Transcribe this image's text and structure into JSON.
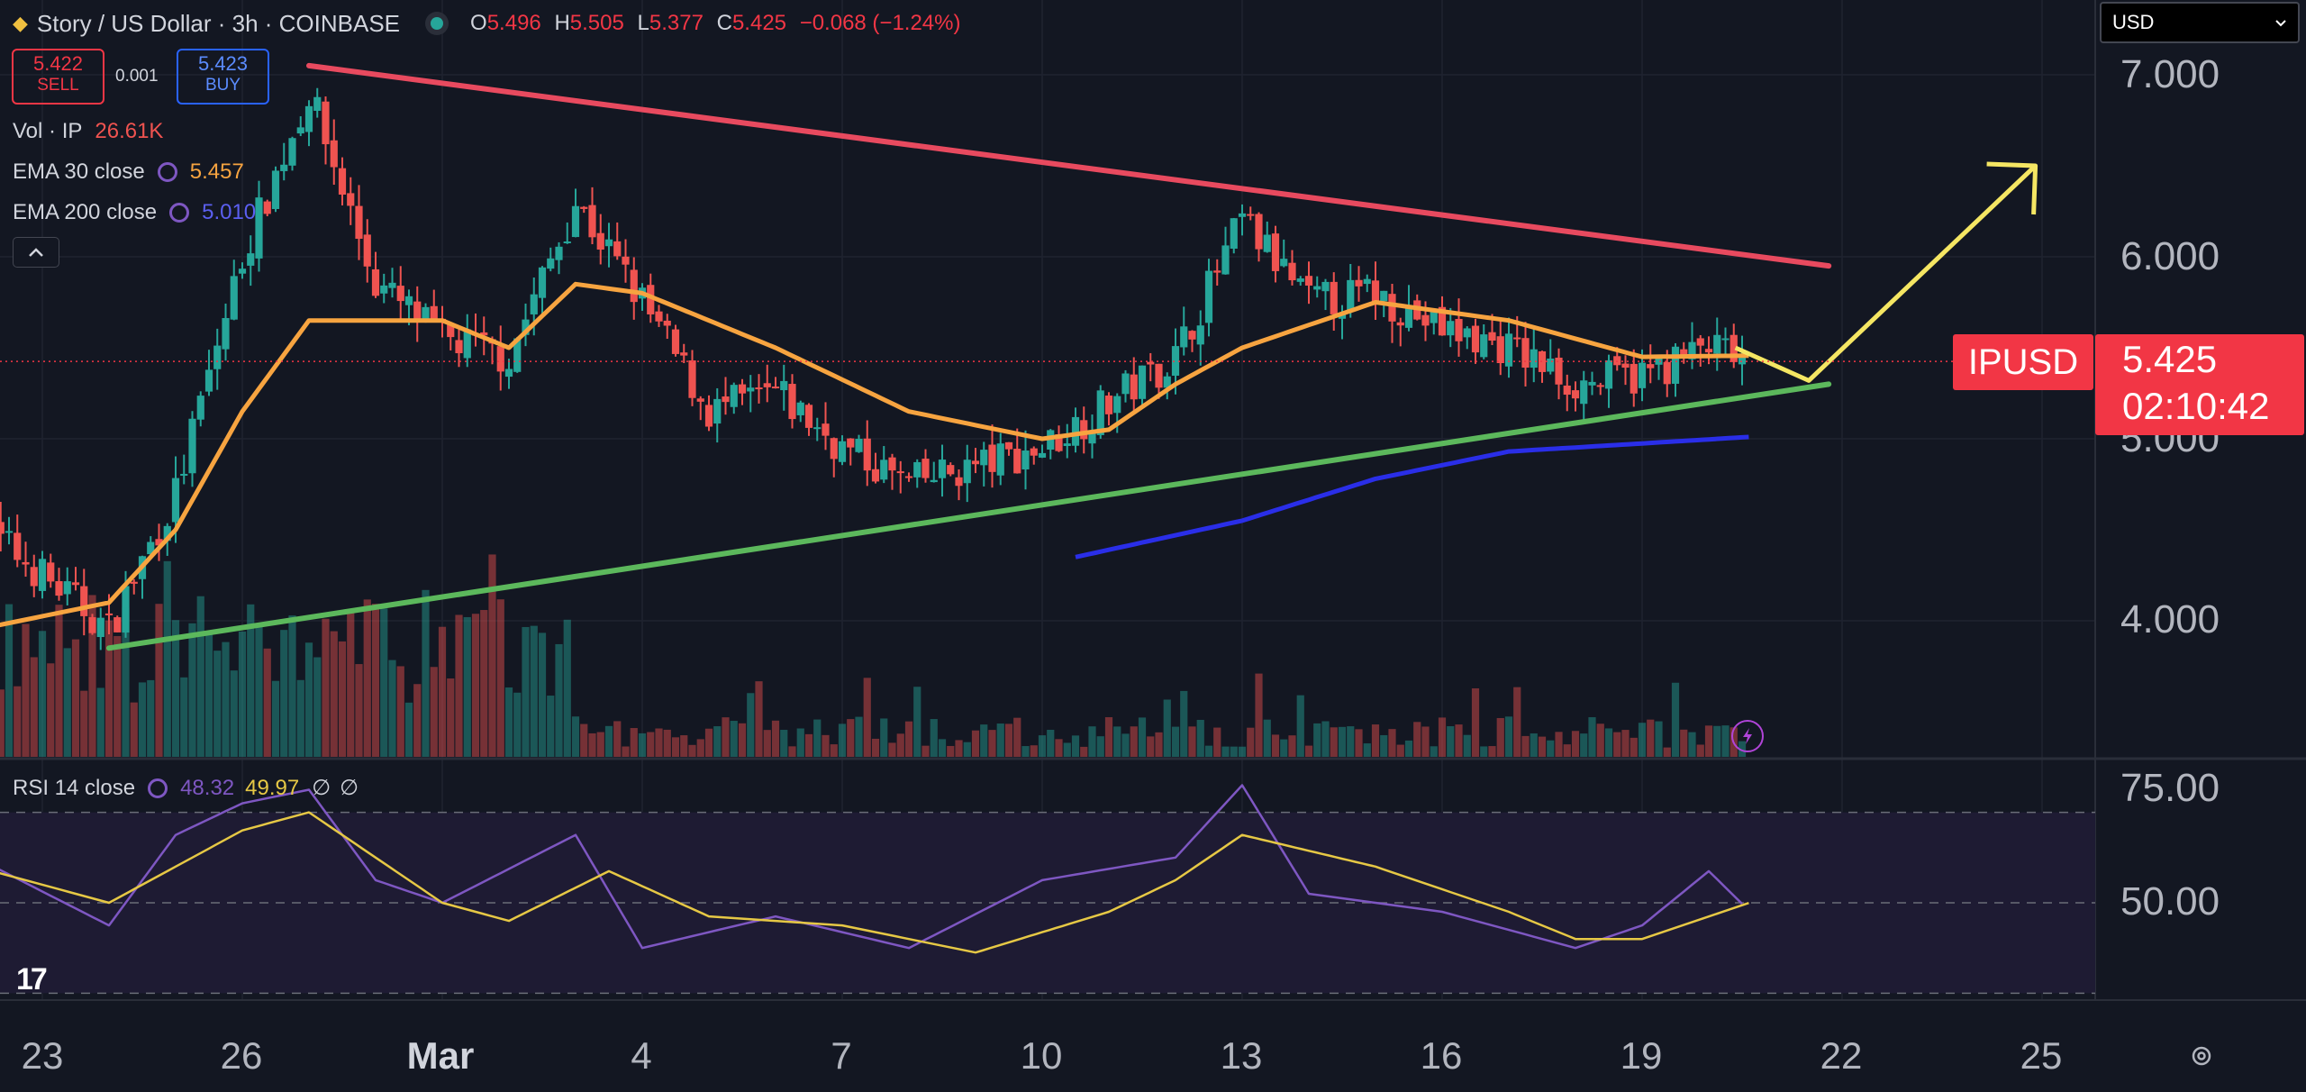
{
  "header": {
    "symbol_title": "Story / US Dollar · 3h · COINBASE",
    "open_prefix": "O",
    "open_value": "5.496",
    "high_prefix": "H",
    "high_value": "5.505",
    "low_prefix": "L",
    "low_value": "5.377",
    "close_prefix": "C",
    "close_value": "5.425",
    "change": "−0.068 (−1.24%)"
  },
  "trade": {
    "sell_price": "5.422",
    "sell_label": "SELL",
    "spread": "0.001",
    "buy_price": "5.423",
    "buy_label": "BUY"
  },
  "indicators": {
    "vol_label": "Vol · IP",
    "vol_value": "26.61K",
    "ema30_label": "EMA 30 close",
    "ema30_value": "5.457",
    "ema200_label": "EMA 200 close",
    "ema200_value": "5.010",
    "collapse_icon": "chevron-up-icon"
  },
  "currency_select": {
    "value": "USD"
  },
  "price_axis": {
    "labels": [
      "7.000",
      "6.000",
      "5.000",
      "4.000"
    ]
  },
  "rsi": {
    "label": "RSI 14 close",
    "value": "48.32",
    "ma_value": "49.97",
    "na1": "∅",
    "na2": "∅",
    "axis_labels": [
      "75.00",
      "50.00"
    ]
  },
  "current_price": {
    "symbol": "IPUSD",
    "price": "5.425",
    "countdown": "02:10:42"
  },
  "date_axis": {
    "labels": [
      "23",
      "26",
      "Mar",
      "4",
      "7",
      "10",
      "13",
      "16",
      "19",
      "22",
      "25"
    ]
  },
  "logo_text": "17",
  "colors": {
    "background": "#131722",
    "up": "#26a69a",
    "down": "#ef5350",
    "ema30": "#f7a440",
    "ema200": "#2a2ee8",
    "resistance": "#e84a5f",
    "support": "#5cb85c",
    "projection": "#f5e663",
    "rsi_line": "#7e57c2",
    "rsi_ma": "#e6c845",
    "price_tag": "#f23645"
  },
  "chart_data": {
    "type": "candlestick",
    "title": "Story / US Dollar · 3h · COINBASE",
    "x_axis": {
      "type": "date",
      "labels": [
        "23",
        "26",
        "Mar",
        "4",
        "7",
        "10",
        "13",
        "16",
        "19",
        "22",
        "25"
      ]
    },
    "y_axis": {
      "ticks": [
        7.0,
        6.0,
        5.0,
        4.0
      ],
      "range": [
        3.2,
        7.45
      ]
    },
    "last": {
      "open": 5.496,
      "high": 5.505,
      "low": 5.377,
      "close": 5.425
    },
    "price_keypoints": [
      {
        "date": "Feb 22",
        "close": 4.55
      },
      {
        "date": "Feb 23",
        "close": 4.25
      },
      {
        "date": "Feb 24",
        "close": 3.95
      },
      {
        "date": "Feb 25",
        "close": 4.7
      },
      {
        "date": "Feb 26",
        "close": 6.0
      },
      {
        "date": "Feb 27",
        "close": 6.9
      },
      {
        "date": "Feb 28",
        "close": 5.85
      },
      {
        "date": "Mar 1",
        "close": 5.55
      },
      {
        "date": "Mar 2",
        "close": 5.45
      },
      {
        "date": "Mar 3",
        "close": 6.3
      },
      {
        "date": "Mar 4",
        "close": 5.75
      },
      {
        "date": "Mar 5",
        "close": 5.15
      },
      {
        "date": "Mar 6",
        "close": 5.25
      },
      {
        "date": "Mar 7",
        "close": 4.95
      },
      {
        "date": "Mar 8",
        "close": 4.75
      },
      {
        "date": "Mar 9",
        "close": 4.85
      },
      {
        "date": "Mar 10",
        "close": 4.95
      },
      {
        "date": "Mar 11",
        "close": 5.2
      },
      {
        "date": "Mar 12",
        "close": 5.45
      },
      {
        "date": "Mar 13",
        "close": 6.2
      },
      {
        "date": "Mar 14",
        "close": 5.75
      },
      {
        "date": "Mar 15",
        "close": 5.8
      },
      {
        "date": "Mar 16",
        "close": 5.6
      },
      {
        "date": "Mar 17",
        "close": 5.5
      },
      {
        "date": "Mar 18",
        "close": 5.3
      },
      {
        "date": "Mar 19",
        "close": 5.35
      },
      {
        "date": "Mar 20",
        "close": 5.5
      },
      {
        "date": "Mar 20.6",
        "close": 5.425
      }
    ],
    "ema30_keypoints": [
      {
        "date": "Feb 22",
        "value": 3.95
      },
      {
        "date": "Feb 24",
        "value": 4.1
      },
      {
        "date": "Feb 25",
        "value": 4.5
      },
      {
        "date": "Feb 26",
        "value": 5.15
      },
      {
        "date": "Feb 27",
        "value": 5.65
      },
      {
        "date": "Mar 1",
        "value": 5.65
      },
      {
        "date": "Mar 2",
        "value": 5.5
      },
      {
        "date": "Mar 3",
        "value": 5.85
      },
      {
        "date": "Mar 4",
        "value": 5.8
      },
      {
        "date": "Mar 6",
        "value": 5.5
      },
      {
        "date": "Mar 8",
        "value": 5.15
      },
      {
        "date": "Mar 10",
        "value": 5.0
      },
      {
        "date": "Mar 11",
        "value": 5.05
      },
      {
        "date": "Mar 12",
        "value": 5.3
      },
      {
        "date": "Mar 13",
        "value": 5.5
      },
      {
        "date": "Mar 15",
        "value": 5.75
      },
      {
        "date": "Mar 17",
        "value": 5.65
      },
      {
        "date": "Mar 19",
        "value": 5.45
      },
      {
        "date": "Mar 20.6",
        "value": 5.457
      }
    ],
    "ema200_keypoints": [
      {
        "date": "Mar 10.5",
        "value": 4.35
      },
      {
        "date": "Mar 13",
        "value": 4.55
      },
      {
        "date": "Mar 15",
        "value": 4.78
      },
      {
        "date": "Mar 17",
        "value": 4.93
      },
      {
        "date": "Mar 20.6",
        "value": 5.01
      }
    ],
    "trendlines": [
      {
        "name": "resistance",
        "from": {
          "date": "Feb 27",
          "price": 7.05
        },
        "to": {
          "date": "Mar 21.8",
          "price": 5.95
        }
      },
      {
        "name": "support",
        "from": {
          "date": "Feb 24",
          "price": 3.85
        },
        "to": {
          "date": "Mar 21.8",
          "price": 5.3
        }
      },
      {
        "name": "projection",
        "points": [
          {
            "date": "Mar 20.4",
            "price": 5.5
          },
          {
            "date": "Mar 21.5",
            "price": 5.32
          },
          {
            "date": "Mar 24.9",
            "price": 6.5
          }
        ]
      }
    ],
    "rsi_y_axis": {
      "ticks": [
        75.0,
        50.0
      ],
      "bands": [
        70,
        50,
        30
      ]
    },
    "rsi_keypoints": [
      {
        "date": "Feb 22",
        "value": 60
      },
      {
        "date": "Feb 24",
        "value": 45
      },
      {
        "date": "Feb 25",
        "value": 65
      },
      {
        "date": "Feb 26",
        "value": 72
      },
      {
        "date": "Feb 27",
        "value": 75
      },
      {
        "date": "Feb 28",
        "value": 55
      },
      {
        "date": "Mar 1",
        "value": 50
      },
      {
        "date": "Mar 3",
        "value": 65
      },
      {
        "date": "Mar 4",
        "value": 40
      },
      {
        "date": "Mar 6",
        "value": 47
      },
      {
        "date": "Mar 8",
        "value": 40
      },
      {
        "date": "Mar 10",
        "value": 55
      },
      {
        "date": "Mar 12",
        "value": 60
      },
      {
        "date": "Mar 13",
        "value": 76
      },
      {
        "date": "Mar 14",
        "value": 52
      },
      {
        "date": "Mar 16",
        "value": 48
      },
      {
        "date": "Mar 18",
        "value": 40
      },
      {
        "date": "Mar 19",
        "value": 45
      },
      {
        "date": "Mar 20",
        "value": 57
      },
      {
        "date": "Mar 20.6",
        "value": 48.32
      }
    ],
    "rsi_ma_keypoints": [
      {
        "date": "Feb 22",
        "value": 58
      },
      {
        "date": "Feb 24",
        "value": 50
      },
      {
        "date": "Feb 26",
        "value": 66
      },
      {
        "date": "Feb 27",
        "value": 70
      },
      {
        "date": "Mar 1",
        "value": 50
      },
      {
        "date": "Mar 2",
        "value": 46
      },
      {
        "date": "Mar 3.5",
        "value": 57
      },
      {
        "date": "Mar 5",
        "value": 47
      },
      {
        "date": "Mar 7",
        "value": 45
      },
      {
        "date": "Mar 9",
        "value": 39
      },
      {
        "date": "Mar 11",
        "value": 48
      },
      {
        "date": "Mar 12",
        "value": 55
      },
      {
        "date": "Mar 13",
        "value": 65
      },
      {
        "date": "Mar 15",
        "value": 58
      },
      {
        "date": "Mar 17",
        "value": 48
      },
      {
        "date": "Mar 18",
        "value": 42
      },
      {
        "date": "Mar 19",
        "value": 42
      },
      {
        "date": "Mar 20.6",
        "value": 49.97
      }
    ]
  }
}
